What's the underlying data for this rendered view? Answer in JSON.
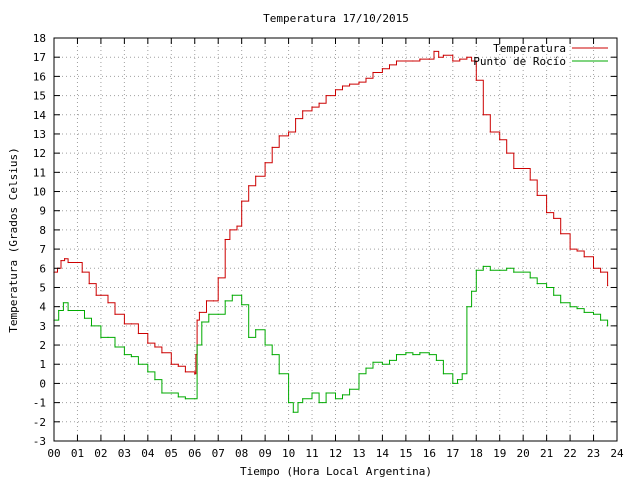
{
  "chart_data": {
    "type": "line",
    "title": "Temperatura 17/10/2015",
    "xlabel": "Tiempo (Hora Local Argentina)",
    "ylabel": "Temperatura (Grados Celsius)",
    "xlim": [
      0,
      24
    ],
    "ylim": [
      -3,
      18
    ],
    "x_ticks": [
      "00",
      "01",
      "02",
      "03",
      "04",
      "05",
      "06",
      "07",
      "08",
      "09",
      "10",
      "11",
      "12",
      "13",
      "14",
      "15",
      "16",
      "17",
      "18",
      "19",
      "20",
      "21",
      "22",
      "23",
      "24"
    ],
    "y_ticks": [
      "-3",
      "-2",
      "-1",
      "0",
      "1",
      "2",
      "3",
      "4",
      "5",
      "6",
      "7",
      "8",
      "9",
      "10",
      "11",
      "12",
      "13",
      "14",
      "15",
      "16",
      "17",
      "18"
    ],
    "grid": true,
    "legend_position": "top-right",
    "series": [
      {
        "name": "Temperatura",
        "color": "#cc0000",
        "x": [
          0,
          0.15,
          0.3,
          0.45,
          0.6,
          1.0,
          1.2,
          1.5,
          1.8,
          2.0,
          2.3,
          2.6,
          3.0,
          3.3,
          3.6,
          4.0,
          4.3,
          4.6,
          5.0,
          5.3,
          5.6,
          6.0,
          6.05,
          6.1,
          6.2,
          6.5,
          6.8,
          7.0,
          7.3,
          7.5,
          7.8,
          8.0,
          8.3,
          8.6,
          9.0,
          9.3,
          9.6,
          10.0,
          10.3,
          10.6,
          11.0,
          11.3,
          11.6,
          12.0,
          12.3,
          12.6,
          13.0,
          13.3,
          13.6,
          14.0,
          14.3,
          14.6,
          15.0,
          15.3,
          15.6,
          16.0,
          16.2,
          16.4,
          16.6,
          17.0,
          17.3,
          17.6,
          17.8,
          18.0,
          18.3,
          18.6,
          19.0,
          19.3,
          19.6,
          20.0,
          20.3,
          20.6,
          21.0,
          21.3,
          21.6,
          22.0,
          22.3,
          22.6,
          23.0,
          23.3,
          23.6
        ],
        "values": [
          5.8,
          6.0,
          6.4,
          6.5,
          6.3,
          6.3,
          5.8,
          5.2,
          4.6,
          4.6,
          4.2,
          3.6,
          3.1,
          3.1,
          2.6,
          2.1,
          1.9,
          1.6,
          1.0,
          0.9,
          0.6,
          0.5,
          1.5,
          3.3,
          3.7,
          4.3,
          4.3,
          5.5,
          7.5,
          8.0,
          8.2,
          9.5,
          10.3,
          10.8,
          11.5,
          12.3,
          12.9,
          13.1,
          13.8,
          14.2,
          14.4,
          14.6,
          15.0,
          15.3,
          15.5,
          15.6,
          15.7,
          15.9,
          16.2,
          16.4,
          16.6,
          16.8,
          16.8,
          16.8,
          16.9,
          16.9,
          17.3,
          17.0,
          17.1,
          16.8,
          16.9,
          17.0,
          16.8,
          15.8,
          14.0,
          13.1,
          12.7,
          12.0,
          11.2,
          11.2,
          10.6,
          9.8,
          8.9,
          8.6,
          7.8,
          7.0,
          6.9,
          6.6,
          6.0,
          5.8,
          5.1
        ]
      },
      {
        "name": "Punto de Rocío",
        "color": "#00aa00",
        "x": [
          0,
          0.2,
          0.4,
          0.6,
          1.0,
          1.3,
          1.6,
          2.0,
          2.3,
          2.6,
          3.0,
          3.3,
          3.6,
          4.0,
          4.3,
          4.6,
          5.0,
          5.3,
          5.6,
          6.0,
          6.1,
          6.3,
          6.6,
          7.0,
          7.3,
          7.6,
          8.0,
          8.3,
          8.6,
          9.0,
          9.3,
          9.6,
          10.0,
          10.2,
          10.4,
          10.6,
          11.0,
          11.3,
          11.6,
          12.0,
          12.3,
          12.6,
          13.0,
          13.3,
          13.6,
          14.0,
          14.3,
          14.6,
          15.0,
          15.3,
          15.6,
          16.0,
          16.3,
          16.6,
          17.0,
          17.2,
          17.4,
          17.6,
          17.8,
          18.0,
          18.3,
          18.6,
          19.0,
          19.3,
          19.6,
          20.0,
          20.3,
          20.6,
          21.0,
          21.3,
          21.6,
          22.0,
          22.3,
          22.6,
          23.0,
          23.3,
          23.6
        ],
        "values": [
          3.3,
          3.8,
          4.2,
          3.8,
          3.8,
          3.4,
          3.0,
          2.4,
          2.4,
          1.9,
          1.5,
          1.4,
          1.0,
          0.6,
          0.2,
          -0.5,
          -0.5,
          -0.7,
          -0.8,
          -0.8,
          2.0,
          3.2,
          3.6,
          3.6,
          4.3,
          4.6,
          4.1,
          2.4,
          2.8,
          2.0,
          1.5,
          0.5,
          -1.0,
          -1.5,
          -1.0,
          -0.8,
          -0.5,
          -1.0,
          -0.5,
          -0.8,
          -0.6,
          -0.3,
          0.5,
          0.8,
          1.1,
          1.0,
          1.2,
          1.5,
          1.6,
          1.5,
          1.6,
          1.5,
          1.2,
          0.5,
          0.0,
          0.2,
          0.5,
          4.0,
          4.8,
          5.9,
          6.1,
          5.9,
          5.9,
          6.0,
          5.8,
          5.8,
          5.5,
          5.2,
          5.0,
          4.6,
          4.2,
          4.0,
          3.9,
          3.7,
          3.6,
          3.3,
          3.0
        ]
      }
    ]
  }
}
